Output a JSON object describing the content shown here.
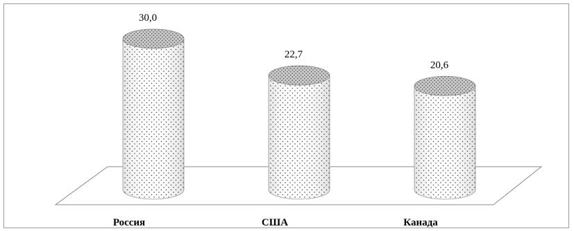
{
  "chart_data": {
    "type": "bar",
    "style": "3d-cylinder",
    "categories": [
      "Россия",
      "США",
      "Канада"
    ],
    "values": [
      30.0,
      22.7,
      20.6
    ],
    "data_labels": [
      "30,0",
      "22,7",
      "20,6"
    ],
    "title": "",
    "xlabel": "",
    "ylabel": "",
    "ylim": [
      0,
      30
    ],
    "grid": false,
    "legend": "none",
    "fill": "dotted-gray"
  }
}
